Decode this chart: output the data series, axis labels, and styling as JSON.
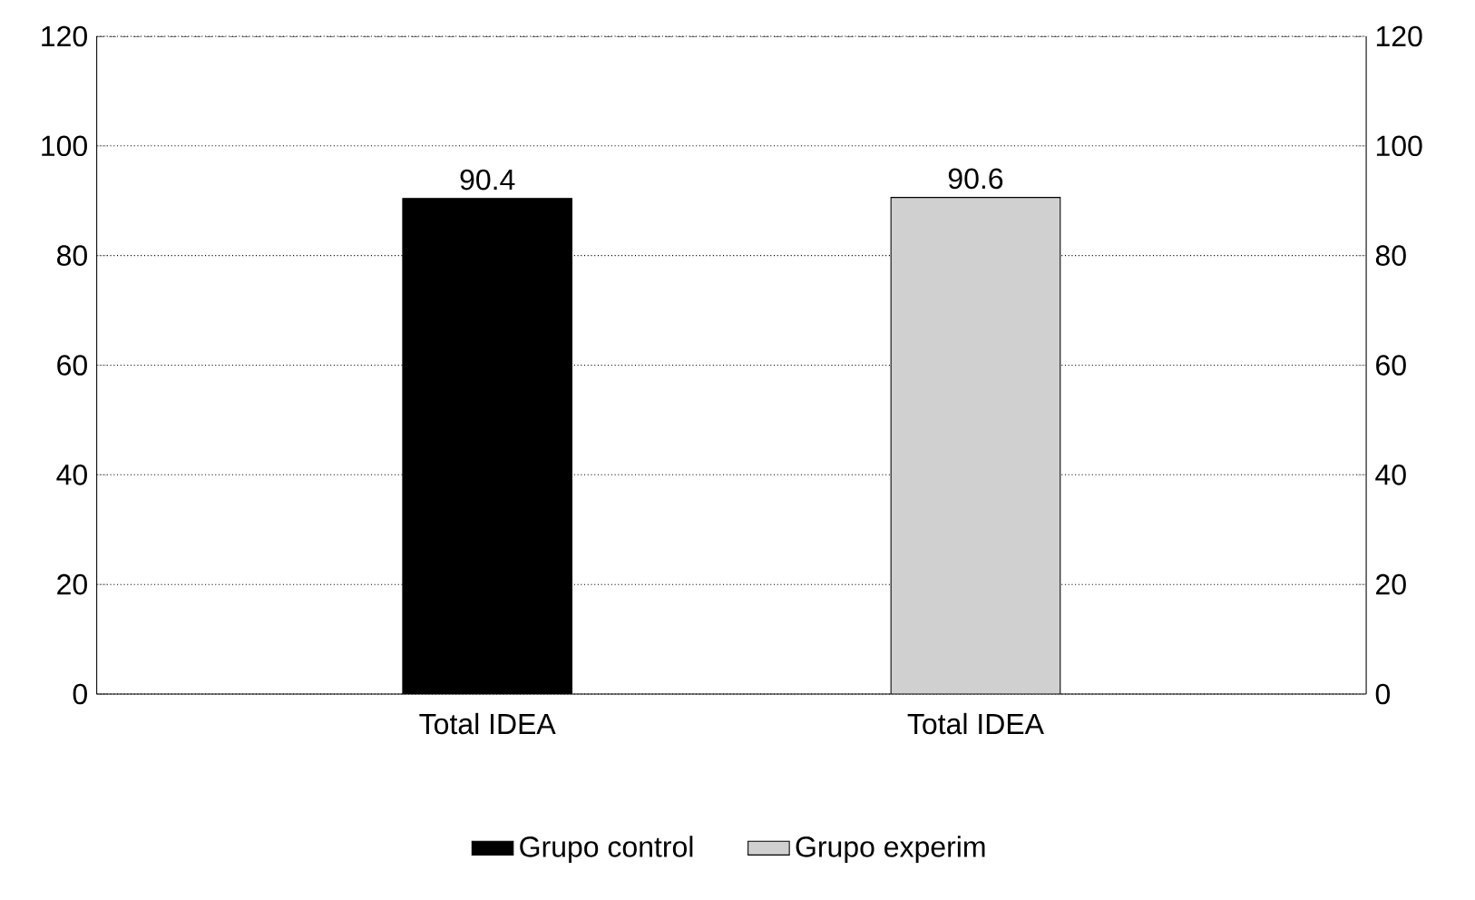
{
  "chart_data": {
    "type": "bar",
    "categories": [
      "Total IDEA",
      "Total IDEA"
    ],
    "series": [
      {
        "name": "Grupo control",
        "color": "#000000",
        "values": [
          90.4,
          null
        ]
      },
      {
        "name": "Grupo experim",
        "color": "#d0d0d0",
        "values": [
          null,
          90.6
        ]
      }
    ],
    "ylim": [
      0,
      120
    ],
    "yticks": [
      0,
      20,
      40,
      60,
      80,
      100,
      120
    ],
    "y2lim": [
      0,
      120
    ],
    "y2ticks": [
      0,
      20,
      40,
      60,
      80,
      100,
      120
    ],
    "grid": "y",
    "legend": "bottom",
    "data_labels": true
  }
}
